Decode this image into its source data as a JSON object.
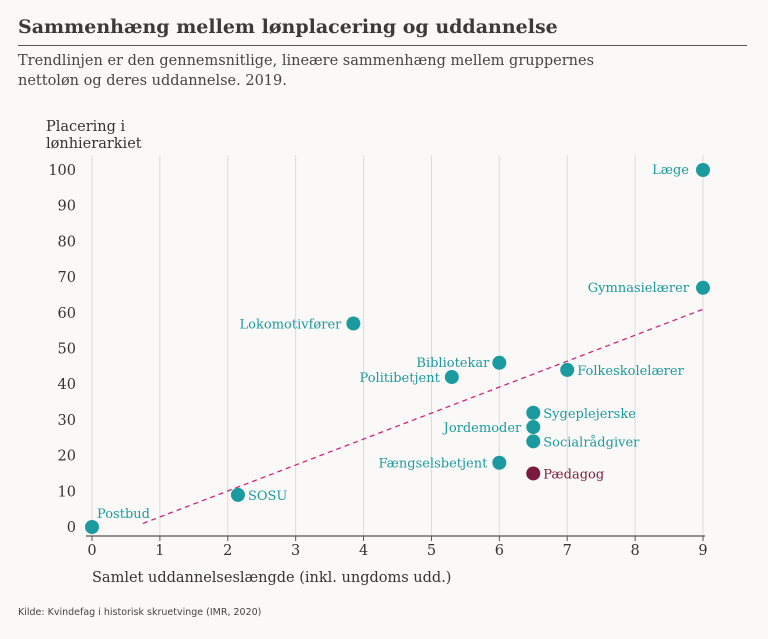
{
  "title": "Sammenhæng mellem lønplacering og uddannelse",
  "subtitle": "Trendlinjen er den gennemsnitlige, lineære sammenhæng mellem gruppernes nettoløn og deres uddannelse. 2019.",
  "source": "Kilde: Kvindefag i historisk skruetvinge (IMR, 2020)",
  "colors": {
    "point": "#1b9aa0",
    "highlight": "#7a1b3e",
    "trend": "#d4237a",
    "grid": "#dcdcdc",
    "axis": "#555555"
  },
  "chart_data": {
    "type": "scatter",
    "xlabel": "Samlet uddannelseslængde (inkl. ungdoms udd.)",
    "ylabel_lines": [
      "Placering i",
      "lønhierarkiet"
    ],
    "xlim": [
      0,
      9
    ],
    "ylim": [
      0,
      100
    ],
    "xticks": [
      0,
      1,
      2,
      3,
      4,
      5,
      6,
      7,
      8,
      9
    ],
    "yticks": [
      0,
      10,
      20,
      30,
      40,
      50,
      60,
      70,
      80,
      90,
      100
    ],
    "grid": "vertical",
    "trendline": {
      "x": [
        0.75,
        9
      ],
      "y": [
        1,
        61
      ]
    },
    "points": [
      {
        "label": "Postbud",
        "x": 0,
        "y": 0,
        "highlight": false
      },
      {
        "label": "SOSU",
        "x": 2.15,
        "y": 9,
        "highlight": false
      },
      {
        "label": "Lokomotivfører",
        "x": 3.85,
        "y": 57,
        "highlight": false
      },
      {
        "label": "Politibetjent",
        "x": 5.3,
        "y": 42,
        "highlight": false
      },
      {
        "label": "Bibliotekar",
        "x": 6.0,
        "y": 46,
        "highlight": false
      },
      {
        "label": "Fængselsbetjent",
        "x": 6.0,
        "y": 18,
        "highlight": false
      },
      {
        "label": "Sygeplejerske",
        "x": 6.5,
        "y": 32,
        "highlight": false
      },
      {
        "label": "Jordemoder",
        "x": 6.5,
        "y": 28,
        "highlight": false
      },
      {
        "label": "Socialrådgiver",
        "x": 6.5,
        "y": 24,
        "highlight": false
      },
      {
        "label": "Pædagog",
        "x": 6.5,
        "y": 15,
        "highlight": true
      },
      {
        "label": "Folkeskolelærer",
        "x": 7.0,
        "y": 44,
        "highlight": false
      },
      {
        "label": "Gymnasielærer",
        "x": 9.0,
        "y": 67,
        "highlight": false
      },
      {
        "label": "Læge",
        "x": 9.0,
        "y": 100,
        "highlight": false
      }
    ]
  }
}
